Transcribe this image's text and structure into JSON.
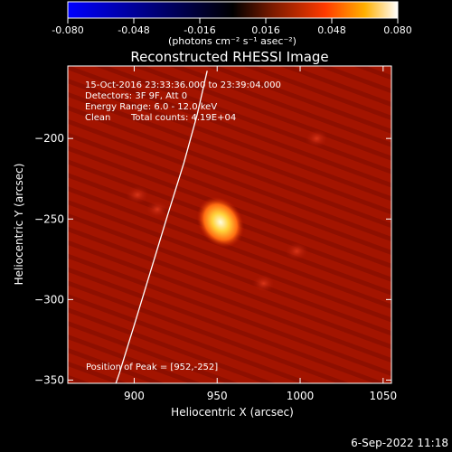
{
  "chart_data": {
    "type": "heatmap",
    "title": "Reconstructed RHESSI Image",
    "xlabel": "Heliocentric X (arcsec)",
    "ylabel": "Heliocentric Y (arcsec)",
    "xlim": [
      860,
      1055
    ],
    "ylim": [
      -352,
      -155
    ],
    "xticks": [
      900,
      950,
      1000,
      1050
    ],
    "yticks": [
      -200,
      -250,
      -300,
      -350
    ],
    "colorbar": {
      "min": -0.08,
      "max": 0.08,
      "ticks": [
        "-0.080",
        "-0.048",
        "-0.016",
        "0.016",
        "0.048",
        "0.080"
      ],
      "units_label": "(photons cm⁻² s⁻¹ asec⁻²)",
      "colormap": [
        "#0000ff",
        "#000000",
        "#7a1a00",
        "#ff3a00",
        "#ffb000",
        "#ffffff"
      ]
    },
    "peak": {
      "x": 952,
      "y": -252
    },
    "secondary_sources": [
      {
        "x": 902,
        "y": -235
      },
      {
        "x": 914,
        "y": -244
      },
      {
        "x": 998,
        "y": -270
      },
      {
        "x": 978,
        "y": -290
      },
      {
        "x": 1010,
        "y": -200
      }
    ],
    "limb_curve": [
      {
        "x": 944,
        "y": -158
      },
      {
        "x": 938,
        "y": -185
      },
      {
        "x": 930,
        "y": -215
      },
      {
        "x": 920,
        "y": -248
      },
      {
        "x": 910,
        "y": -282
      },
      {
        "x": 900,
        "y": -316
      },
      {
        "x": 891,
        "y": -346
      },
      {
        "x": 889,
        "y": -352
      }
    ]
  },
  "annotations": {
    "time_range": "15-Oct-2016 23:33:36.000 to 23:39:04.000",
    "detectors": "Detectors: 3F 9F, Att 0",
    "energy": "Energy Range: 6.0 - 12.0 keV",
    "method": "Clean",
    "total_counts": "Total counts: 4.19E+04",
    "peak_position": "Position of Peak = [952,-252]"
  },
  "footer_date": "6-Sep-2022 11:18"
}
